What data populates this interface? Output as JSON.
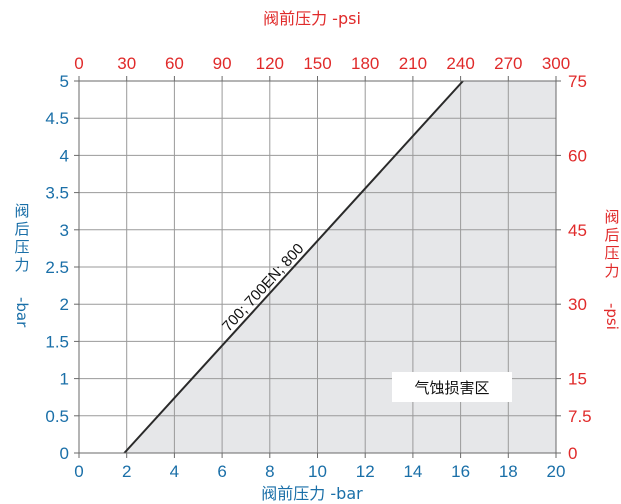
{
  "chart_data": {
    "type": "line",
    "top_axis": {
      "label": "阀前压力 -psi",
      "ticks": [
        0,
        30,
        60,
        90,
        120,
        150,
        180,
        210,
        240,
        270,
        300
      ],
      "range": [
        0,
        300
      ]
    },
    "bottom_axis": {
      "label": "阀前压力 -bar",
      "ticks": [
        0,
        2,
        4,
        6,
        8,
        10,
        12,
        14,
        16,
        18,
        20
      ],
      "range": [
        0,
        20
      ]
    },
    "left_axis": {
      "label_lines": [
        "阀",
        "后",
        "压",
        "力",
        "-bar"
      ],
      "ticks": [
        "0",
        "0.5",
        "1",
        "1.5",
        "2",
        "2.5",
        "3",
        "3.5",
        "4",
        "4.5",
        "5"
      ],
      "range": [
        0,
        5
      ]
    },
    "right_axis": {
      "label_lines": [
        "阀",
        "后",
        "压",
        "力",
        "-psi"
      ],
      "ticks": [
        {
          "label": "0",
          "value_bar": 0
        },
        {
          "label": "7.5",
          "value_bar": 0.5
        },
        {
          "label": "15",
          "value_bar": 1
        },
        {
          "label": "30",
          "value_bar": 2
        },
        {
          "label": "45",
          "value_bar": 3
        },
        {
          "label": "60",
          "value_bar": 4
        },
        {
          "label": "75",
          "value_bar": 5
        }
      ]
    },
    "series": [
      {
        "name": "700; 700EN; 800",
        "points": [
          [
            1.9,
            0
          ],
          [
            16.1,
            5
          ]
        ]
      }
    ],
    "region": {
      "label": "气蚀损害区",
      "fill": "#e6e7e9",
      "description_points": [
        [
          1.9,
          0
        ],
        [
          16.1,
          5
        ],
        [
          20,
          5
        ],
        [
          20,
          0
        ]
      ]
    },
    "grid": true,
    "colors": {
      "left_bottom_axis": "#1a6fa8",
      "top_right_axis": "#e02a2a",
      "line": "#2a2a2a",
      "grid": "#9a9a9a"
    }
  }
}
